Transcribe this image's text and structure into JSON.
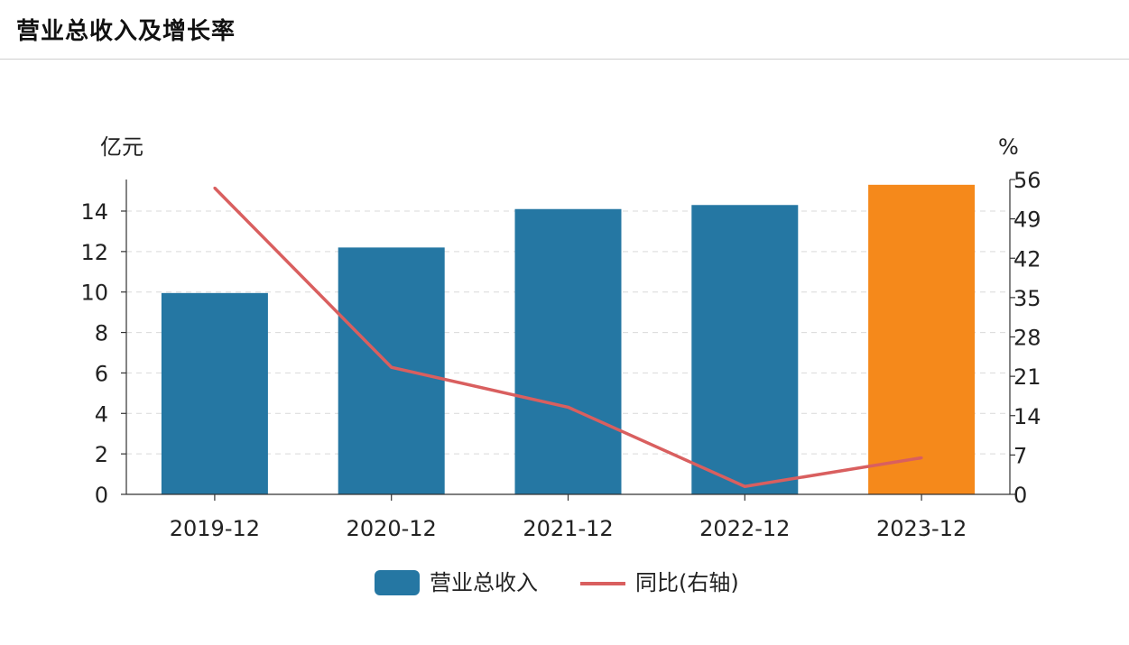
{
  "page": {
    "title": "营业总收入及增长率"
  },
  "colors": {
    "bar": "#2577a3",
    "bar_highlight": "#f5891b",
    "line": "#d95f5f",
    "grid": "#d9d9d9",
    "axis": "#333333"
  },
  "chart_data": {
    "type": "bar",
    "categories": [
      "2019-12",
      "2020-12",
      "2021-12",
      "2022-12",
      "2023-12"
    ],
    "series": [
      {
        "name": "营业总收入",
        "type": "bar",
        "axis": "left",
        "values": [
          9.95,
          12.2,
          14.1,
          14.3,
          15.3
        ]
      },
      {
        "name": "同比(右轴)",
        "type": "line",
        "axis": "right",
        "values": [
          54.5,
          22.6,
          15.5,
          1.4,
          6.5
        ]
      }
    ],
    "highlight_index": 4,
    "y_left": {
      "unit": "亿元",
      "range": [
        0,
        15.56
      ],
      "ticks": [
        0,
        2,
        4,
        6,
        8,
        10,
        12,
        14
      ]
    },
    "y_right": {
      "unit": "%",
      "range": [
        0,
        56
      ],
      "ticks": [
        0,
        7,
        14,
        21,
        28,
        35,
        42,
        49,
        56
      ]
    },
    "grid": "horizontal dashed",
    "legend": {
      "position": "bottom-center",
      "items": [
        {
          "label": "营业总收入",
          "shape": "bar"
        },
        {
          "label": "同比(右轴)",
          "shape": "line"
        }
      ]
    }
  }
}
